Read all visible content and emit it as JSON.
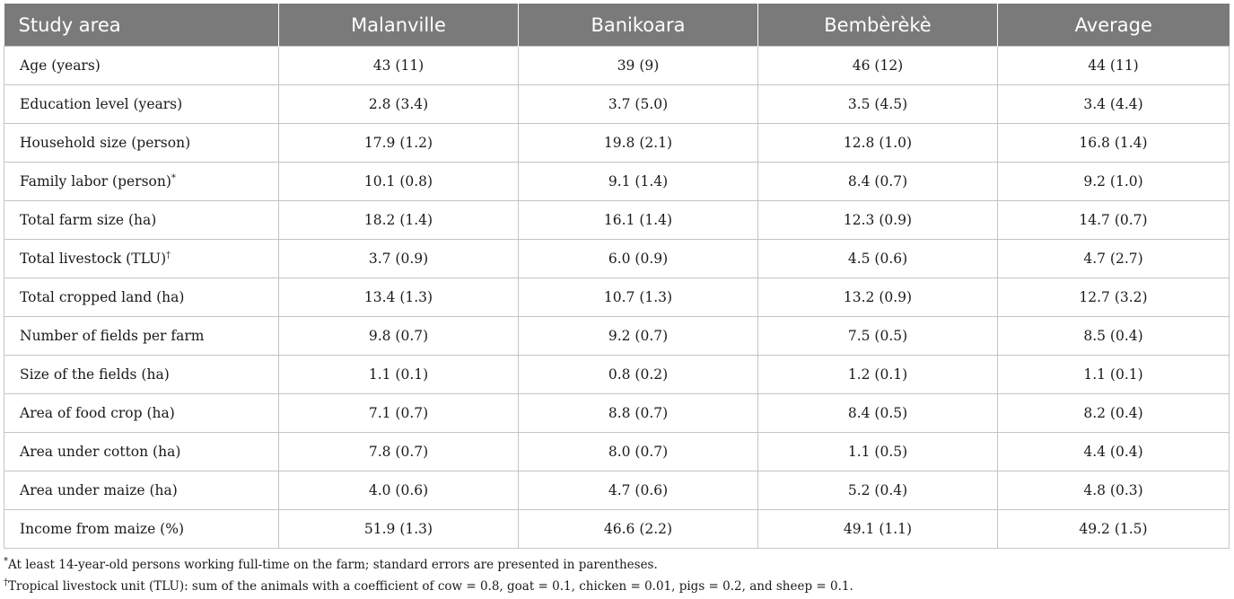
{
  "table": {
    "headers": [
      "Study area",
      "Malanville",
      "Banikoara",
      "Bembèrèkè",
      "Average"
    ],
    "rows": [
      {
        "label": "Age (years)",
        "mark": "",
        "values": [
          "43 (11)",
          "39 (9)",
          "46 (12)",
          "44 (11)"
        ]
      },
      {
        "label": "Education level (years)",
        "mark": "",
        "values": [
          "2.8 (3.4)",
          "3.7 (5.0)",
          "3.5 (4.5)",
          "3.4 (4.4)"
        ]
      },
      {
        "label": "Household size (person)",
        "mark": "",
        "values": [
          "17.9 (1.2)",
          "19.8 (2.1)",
          "12.8 (1.0)",
          "16.8 (1.4)"
        ]
      },
      {
        "label": "Family labor (person)",
        "mark": "*",
        "values": [
          "10.1 (0.8)",
          "9.1 (1.4)",
          "8.4 (0.7)",
          "9.2 (1.0)"
        ]
      },
      {
        "label": "Total farm size (ha)",
        "mark": "",
        "values": [
          "18.2 (1.4)",
          "16.1 (1.4)",
          "12.3 (0.9)",
          "14.7 (0.7)"
        ]
      },
      {
        "label": "Total livestock (TLU)",
        "mark": "†",
        "values": [
          "3.7 (0.9)",
          "6.0 (0.9)",
          "4.5 (0.6)",
          "4.7 (2.7)"
        ]
      },
      {
        "label": "Total cropped land (ha)",
        "mark": "",
        "values": [
          "13.4 (1.3)",
          "10.7 (1.3)",
          "13.2 (0.9)",
          "12.7 (3.2)"
        ]
      },
      {
        "label": "Number of fields per farm",
        "mark": "",
        "values": [
          "9.8 (0.7)",
          "9.2 (0.7)",
          "7.5 (0.5)",
          "8.5 (0.4)"
        ]
      },
      {
        "label": "Size of the fields (ha)",
        "mark": "",
        "values": [
          "1.1 (0.1)",
          "0.8 (0.2)",
          "1.2 (0.1)",
          "1.1 (0.1)"
        ]
      },
      {
        "label": "Area of food crop (ha)",
        "mark": "",
        "values": [
          "7.1 (0.7)",
          "8.8 (0.7)",
          "8.4 (0.5)",
          "8.2 (0.4)"
        ]
      },
      {
        "label": "Area under cotton (ha)",
        "mark": "",
        "values": [
          "7.8 (0.7)",
          "8.0 (0.7)",
          "1.1 (0.5)",
          "4.4 (0.4)"
        ]
      },
      {
        "label": "Area under maize (ha)",
        "mark": "",
        "values": [
          "4.0 (0.6)",
          "4.7 (0.6)",
          "5.2 (0.4)",
          "4.8 (0.3)"
        ]
      },
      {
        "label": "Income from maize (%)",
        "mark": "",
        "values": [
          "51.9 (1.3)",
          "46.6 (2.2)",
          "49.1 (1.1)",
          "49.2 (1.5)"
        ]
      }
    ]
  },
  "notes": [
    {
      "mark": "*",
      "text": "At least 14-year-old persons working full-time on the farm; standard errors are presented in parentheses."
    },
    {
      "mark": "†",
      "text": "Tropical livestock unit (TLU): sum of the animals with a coefficient of cow = 0.8, goat = 0.1, chicken = 0.01, pigs = 0.2, and sheep = 0.1."
    }
  ],
  "colors": {
    "header_bg": "#7a7a7a",
    "header_text": "#ffffff",
    "border": "#c4c4c4"
  }
}
